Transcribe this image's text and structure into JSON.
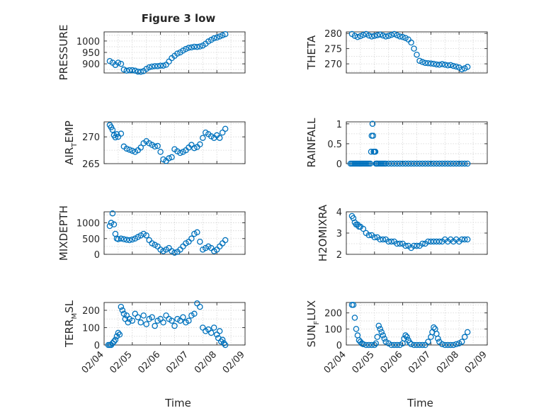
{
  "figure_title": "Figure 3 low",
  "colors": {
    "marker": "#0072bd",
    "axes": "#262626",
    "grid": "#d4d4d4"
  },
  "chart_data": [
    {
      "type": "scatter",
      "title": "Figure 3 low",
      "ylabel": "PRESSURE",
      "ylim": [
        860,
        1040
      ],
      "yticks": [
        900,
        950,
        1000
      ],
      "ytick_labels": [
        "900",
        "950",
        "1000"
      ],
      "grid": true,
      "x": [
        4.2,
        4.3,
        4.4,
        4.5,
        4.6,
        4.7,
        4.8,
        4.9,
        5.0,
        5.1,
        5.2,
        5.3,
        5.4,
        5.5,
        5.6,
        5.7,
        5.8,
        5.9,
        6.0,
        6.1,
        6.2,
        6.3,
        6.4,
        6.5,
        6.6,
        6.7,
        6.8,
        6.9,
        7.0,
        7.1,
        7.2,
        7.3,
        7.4,
        7.5,
        7.6,
        7.7,
        7.8,
        7.9,
        8.0,
        8.1,
        8.2,
        8.3
      ],
      "y": [
        912,
        905,
        895,
        905,
        900,
        875,
        870,
        872,
        872,
        870,
        866,
        865,
        868,
        878,
        885,
        888,
        890,
        890,
        892,
        892,
        896,
        910,
        925,
        935,
        945,
        950,
        958,
        965,
        970,
        972,
        975,
        974,
        976,
        980,
        988,
        998,
        1005,
        1012,
        1015,
        1020,
        1025,
        1030
      ]
    },
    {
      "type": "scatter",
      "ylabel": "THETA",
      "ylim": [
        267,
        280.5
      ],
      "yticks": [
        270,
        275,
        280
      ],
      "ytick_labels": [
        "270",
        "275",
        "280"
      ],
      "grid": true,
      "x": [
        4.2,
        4.3,
        4.4,
        4.5,
        4.6,
        4.7,
        4.8,
        4.9,
        5.0,
        5.1,
        5.2,
        5.3,
        5.4,
        5.5,
        5.6,
        5.7,
        5.8,
        5.9,
        6.0,
        6.1,
        6.2,
        6.3,
        6.4,
        6.5,
        6.6,
        6.7,
        6.8,
        6.9,
        7.0,
        7.1,
        7.2,
        7.3,
        7.4,
        7.5,
        7.6,
        7.7,
        7.8,
        7.9,
        8.0,
        8.1,
        8.2,
        8.3
      ],
      "y": [
        279.8,
        279.2,
        278.8,
        279.1,
        279.5,
        279.8,
        279.3,
        279.0,
        279.2,
        279.4,
        279.6,
        279.3,
        279.0,
        279.2,
        279.5,
        279.8,
        279.4,
        279.0,
        278.8,
        278.5,
        278.0,
        277.0,
        275.0,
        273.0,
        271.0,
        270.6,
        270.3,
        270.2,
        270.1,
        270.0,
        269.8,
        269.7,
        269.9,
        269.7,
        269.5,
        269.6,
        269.3,
        269.1,
        268.8,
        268.2,
        268.5,
        269.0
      ]
    },
    {
      "type": "scatter",
      "ylabel": "AIR_TEMP",
      "ylim": [
        265,
        272.8
      ],
      "yticks": [
        265,
        270
      ],
      "ytick_labels": [
        "265",
        "270"
      ],
      "grid": true,
      "x": [
        4.2,
        4.25,
        4.3,
        4.35,
        4.4,
        4.45,
        4.5,
        4.6,
        4.7,
        4.8,
        4.9,
        5.0,
        5.1,
        5.2,
        5.3,
        5.4,
        5.5,
        5.6,
        5.7,
        5.8,
        5.9,
        6.0,
        6.1,
        6.2,
        6.3,
        6.4,
        6.5,
        6.6,
        6.7,
        6.8,
        6.9,
        7.0,
        7.1,
        7.2,
        7.3,
        7.4,
        7.5,
        7.6,
        7.7,
        7.8,
        7.9,
        8.0,
        8.1,
        8.2,
        8.3
      ],
      "y": [
        272.2,
        271.8,
        271.3,
        270.3,
        269.9,
        270.5,
        270.0,
        270.6,
        268.2,
        267.8,
        267.6,
        267.4,
        267.2,
        267.5,
        268.0,
        268.8,
        269.2,
        268.8,
        268.5,
        268.2,
        268.3,
        267.2,
        265.8,
        265.5,
        266.0,
        266.2,
        267.7,
        267.3,
        267.0,
        267.2,
        267.5,
        268.0,
        268.5,
        267.9,
        268.1,
        268.6,
        269.8,
        270.8,
        270.5,
        270.1,
        269.8,
        270.3,
        269.8,
        270.8,
        271.5
      ]
    },
    {
      "type": "scatter",
      "ylabel": "RAINFALL",
      "ylim": [
        0,
        1.05
      ],
      "yticks": [
        0,
        0.5,
        1
      ],
      "ytick_labels": [
        "0",
        "0.5",
        "1"
      ],
      "grid": true,
      "x": [
        4.15,
        4.2,
        4.25,
        4.3,
        4.35,
        4.4,
        4.45,
        4.5,
        4.55,
        4.6,
        4.65,
        4.7,
        4.75,
        4.8,
        4.85,
        4.88,
        4.9,
        4.93,
        4.95,
        4.97,
        5.0,
        5.03,
        5.05,
        5.08,
        5.1,
        5.15,
        5.2,
        5.25,
        5.3,
        5.35,
        5.4,
        5.5,
        5.6,
        5.7,
        5.8,
        5.9,
        6.0,
        6.1,
        6.2,
        6.3,
        6.4,
        6.5,
        6.6,
        6.7,
        6.8,
        6.9,
        7.0,
        7.1,
        7.2,
        7.3,
        7.4,
        7.5,
        7.6,
        7.7,
        7.8,
        7.9,
        8.0,
        8.1,
        8.2,
        8.3
      ],
      "y": [
        0,
        0,
        0,
        0,
        0,
        0,
        0,
        0,
        0,
        0,
        0,
        0,
        0,
        0,
        0,
        0.3,
        0.7,
        1.0,
        0.7,
        0.3,
        0.3,
        0.3,
        0,
        0,
        0,
        0,
        0,
        0,
        0,
        0,
        0,
        0,
        0,
        0,
        0,
        0,
        0,
        0,
        0,
        0,
        0,
        0,
        0,
        0,
        0,
        0,
        0,
        0,
        0,
        0,
        0,
        0,
        0,
        0,
        0,
        0,
        0,
        0,
        0,
        0
      ]
    },
    {
      "type": "scatter",
      "ylabel": "MIXDEPTH",
      "ylim": [
        0,
        1350
      ],
      "yticks": [
        0,
        500,
        1000
      ],
      "ytick_labels": [
        "0",
        "500",
        "1000"
      ],
      "grid": true,
      "x": [
        4.2,
        4.25,
        4.3,
        4.35,
        4.4,
        4.45,
        4.5,
        4.6,
        4.7,
        4.8,
        4.9,
        5.0,
        5.1,
        5.2,
        5.3,
        5.4,
        5.5,
        5.6,
        5.7,
        5.8,
        5.9,
        6.0,
        6.1,
        6.2,
        6.3,
        6.4,
        6.5,
        6.6,
        6.7,
        6.8,
        6.9,
        7.0,
        7.1,
        7.2,
        7.3,
        7.4,
        7.5,
        7.6,
        7.7,
        7.8,
        7.9,
        8.0,
        8.1,
        8.2,
        8.3
      ],
      "y": [
        900,
        1000,
        1300,
        950,
        650,
        500,
        480,
        500,
        480,
        460,
        450,
        470,
        500,
        550,
        600,
        650,
        600,
        450,
        350,
        300,
        250,
        150,
        100,
        150,
        200,
        100,
        50,
        80,
        150,
        250,
        350,
        400,
        500,
        650,
        700,
        400,
        150,
        200,
        250,
        200,
        100,
        150,
        250,
        350,
        450
      ]
    },
    {
      "type": "scatter",
      "ylabel": "H2OMIXRA",
      "ylim": [
        2,
        4
      ],
      "yticks": [
        2,
        3,
        4
      ],
      "ytick_labels": [
        "2",
        "3",
        "4"
      ],
      "grid": true,
      "x": [
        4.2,
        4.25,
        4.3,
        4.35,
        4.4,
        4.45,
        4.5,
        4.6,
        4.7,
        4.8,
        4.9,
        5.0,
        5.1,
        5.2,
        5.3,
        5.4,
        5.5,
        5.6,
        5.7,
        5.8,
        5.9,
        6.0,
        6.1,
        6.2,
        6.3,
        6.4,
        6.5,
        6.6,
        6.7,
        6.8,
        6.9,
        7.0,
        7.1,
        7.2,
        7.3,
        7.4,
        7.5,
        7.6,
        7.7,
        7.8,
        7.9,
        8.0,
        8.1,
        8.2,
        8.3
      ],
      "y": [
        3.8,
        3.7,
        3.5,
        3.4,
        3.4,
        3.3,
        3.3,
        3.2,
        3.0,
        2.9,
        2.9,
        2.8,
        2.8,
        2.7,
        2.7,
        2.7,
        2.6,
        2.6,
        2.6,
        2.5,
        2.5,
        2.5,
        2.4,
        2.4,
        2.3,
        2.4,
        2.4,
        2.4,
        2.5,
        2.5,
        2.6,
        2.6,
        2.6,
        2.6,
        2.6,
        2.6,
        2.7,
        2.6,
        2.7,
        2.6,
        2.7,
        2.6,
        2.7,
        2.7,
        2.7
      ]
    },
    {
      "type": "scatter",
      "ylabel": "TERR_MSL",
      "ylim": [
        0,
        245
      ],
      "yticks": [
        0,
        100,
        200
      ],
      "ytick_labels": [
        "0",
        "100",
        "200"
      ],
      "grid": true,
      "xlabel": "Time",
      "xticks": [
        4,
        5,
        6,
        7,
        8,
        9
      ],
      "xtick_labels": [
        "02/04",
        "02/05",
        "02/06",
        "02/07",
        "02/08",
        "02/09"
      ],
      "x": [
        4.15,
        4.2,
        4.25,
        4.3,
        4.35,
        4.4,
        4.45,
        4.5,
        4.55,
        4.6,
        4.65,
        4.7,
        4.75,
        4.8,
        4.85,
        4.9,
        5.0,
        5.1,
        5.2,
        5.3,
        5.4,
        5.5,
        5.6,
        5.7,
        5.8,
        5.9,
        6.0,
        6.1,
        6.2,
        6.3,
        6.4,
        6.5,
        6.6,
        6.7,
        6.8,
        6.9,
        7.0,
        7.1,
        7.2,
        7.3,
        7.4,
        7.5,
        7.6,
        7.7,
        7.8,
        7.9,
        8.0,
        8.05,
        8.1,
        8.15,
        8.2,
        8.25,
        8.3
      ],
      "y": [
        0,
        0,
        0,
        10,
        20,
        30,
        50,
        70,
        60,
        220,
        200,
        180,
        150,
        170,
        130,
        150,
        140,
        180,
        160,
        130,
        170,
        120,
        150,
        160,
        110,
        140,
        150,
        130,
        170,
        150,
        140,
        110,
        150,
        140,
        160,
        130,
        140,
        170,
        180,
        240,
        220,
        100,
        80,
        90,
        70,
        100,
        60,
        40,
        80,
        20,
        30,
        10,
        0
      ]
    },
    {
      "type": "scatter",
      "ylabel": "SUN_FLUX",
      "ylim": [
        0,
        265
      ],
      "yticks": [
        0,
        100,
        200
      ],
      "ytick_labels": [
        "0",
        "100",
        "200"
      ],
      "grid": true,
      "xlabel": "Time",
      "xticks": [
        4,
        5,
        6,
        7,
        8,
        9
      ],
      "xtick_labels": [
        "02/04",
        "02/05",
        "02/06",
        "02/07",
        "02/08",
        "02/09"
      ],
      "x": [
        4.2,
        4.25,
        4.3,
        4.35,
        4.4,
        4.45,
        4.5,
        4.55,
        4.6,
        4.7,
        4.8,
        4.9,
        5.0,
        5.05,
        5.1,
        5.15,
        5.2,
        5.25,
        5.3,
        5.35,
        5.4,
        5.5,
        5.6,
        5.7,
        5.8,
        5.9,
        6.0,
        6.05,
        6.1,
        6.15,
        6.2,
        6.25,
        6.3,
        6.4,
        6.5,
        6.6,
        6.7,
        6.8,
        6.9,
        7.0,
        7.05,
        7.1,
        7.15,
        7.2,
        7.25,
        7.3,
        7.4,
        7.5,
        7.6,
        7.7,
        7.8,
        7.9,
        8.0,
        8.1,
        8.2,
        8.3
      ],
      "y": [
        250,
        250,
        170,
        100,
        60,
        30,
        20,
        10,
        5,
        0,
        0,
        0,
        0,
        10,
        50,
        120,
        100,
        80,
        60,
        40,
        20,
        10,
        0,
        0,
        0,
        0,
        10,
        40,
        60,
        50,
        30,
        15,
        5,
        0,
        0,
        0,
        0,
        0,
        20,
        50,
        80,
        110,
        100,
        70,
        40,
        20,
        5,
        0,
        0,
        0,
        0,
        5,
        10,
        20,
        50,
        80
      ]
    }
  ]
}
